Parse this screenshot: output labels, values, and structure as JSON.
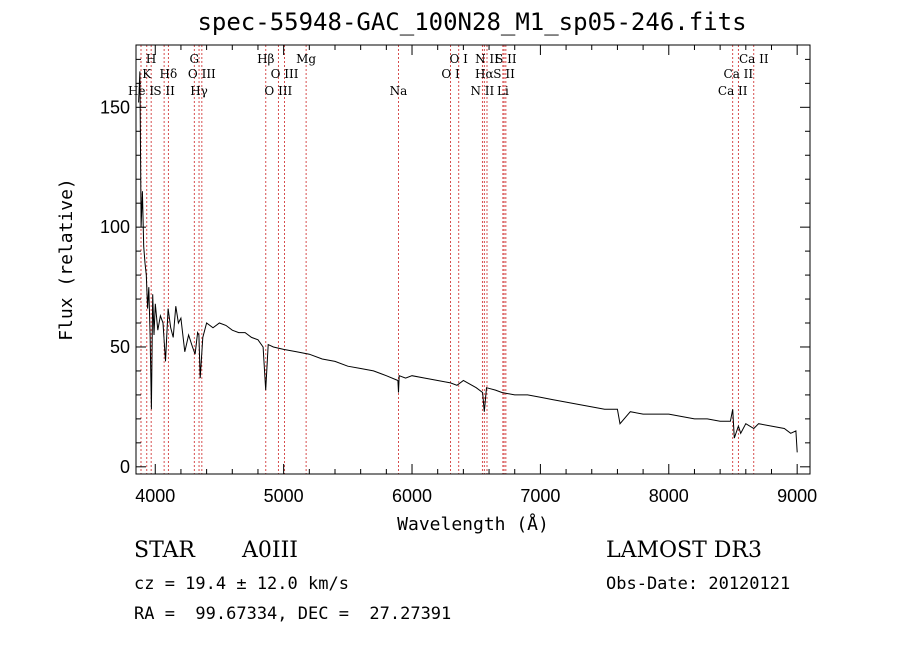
{
  "colors": {
    "line_marker": "#cc2222",
    "spectrum": "#000000",
    "axes": "#000000"
  },
  "chart_data": {
    "type": "line",
    "title": "spec-55948-GAC_100N28_M1_sp05-246.fits",
    "xlabel": "Wavelength (Å)",
    "ylabel": "Flux (relative)",
    "xlim": [
      3850,
      9100
    ],
    "ylim": [
      -3,
      176
    ],
    "xticks": [
      4000,
      5000,
      6000,
      7000,
      8000,
      9000
    ],
    "yticks": [
      0,
      50,
      100,
      150
    ],
    "spectrum": {
      "name": "flux",
      "x": [
        3870,
        3880,
        3890,
        3900,
        3910,
        3920,
        3930,
        3940,
        3950,
        3960,
        3970,
        3980,
        3990,
        4000,
        4020,
        4040,
        4060,
        4080,
        4100,
        4120,
        4140,
        4160,
        4180,
        4200,
        4230,
        4260,
        4290,
        4310,
        4330,
        4340,
        4350,
        4370,
        4400,
        4450,
        4500,
        4550,
        4600,
        4650,
        4700,
        4750,
        4800,
        4840,
        4860,
        4880,
        4920,
        5000,
        5100,
        5200,
        5300,
        5400,
        5500,
        5600,
        5700,
        5800,
        5890,
        5895,
        5900,
        5950,
        6000,
        6100,
        6200,
        6300,
        6350,
        6400,
        6500,
        6550,
        6563,
        6580,
        6650,
        6700,
        6800,
        6900,
        7000,
        7100,
        7200,
        7300,
        7400,
        7500,
        7600,
        7620,
        7700,
        7800,
        7900,
        8000,
        8100,
        8200,
        8300,
        8400,
        8480,
        8498,
        8510,
        8542,
        8560,
        8600,
        8662,
        8700,
        8800,
        8900,
        8950,
        8990,
        9000
      ],
      "y": [
        152,
        165,
        100,
        115,
        92,
        85,
        80,
        66,
        75,
        55,
        24,
        72,
        55,
        68,
        57,
        63,
        60,
        44,
        66,
        58,
        54,
        67,
        60,
        62,
        48,
        55,
        50,
        47,
        56,
        55,
        37,
        54,
        60,
        58,
        60,
        59,
        57,
        56,
        56,
        54,
        53,
        50,
        32,
        51,
        50,
        49,
        48,
        47,
        45,
        44,
        42,
        41,
        40,
        38,
        36,
        31,
        38,
        37,
        38,
        37,
        36,
        35,
        34,
        36,
        33,
        31,
        23,
        33,
        32,
        31,
        30,
        30,
        29,
        28,
        27,
        26,
        25,
        24,
        24,
        18,
        23,
        22,
        22,
        22,
        21,
        20,
        20,
        19,
        19,
        24,
        12,
        17,
        14,
        18,
        16,
        18,
        17,
        16,
        14,
        15,
        6
      ]
    },
    "line_markers": [
      {
        "label": "He I",
        "wavelength": 3889,
        "row": 3
      },
      {
        "label": "K",
        "wavelength": 3934,
        "row": 2
      },
      {
        "label": "H",
        "wavelength": 3968,
        "row": 1
      },
      {
        "label": "S II",
        "wavelength": 4069,
        "row": 3
      },
      {
        "label": "Hδ",
        "wavelength": 4102,
        "row": 2
      },
      {
        "label": "G",
        "wavelength": 4304,
        "row": 1
      },
      {
        "label": "Hγ",
        "wavelength": 4341,
        "row": 3
      },
      {
        "label": "O III",
        "wavelength": 4363,
        "row": 2
      },
      {
        "label": "Hβ",
        "wavelength": 4861,
        "row": 1
      },
      {
        "label": "O III",
        "wavelength": 4959,
        "row": 3
      },
      {
        "label": "O III",
        "wavelength": 5007,
        "row": 2
      },
      {
        "label": "Mg",
        "wavelength": 5175,
        "row": 1
      },
      {
        "label": "Na",
        "wavelength": 5894,
        "row": 3
      },
      {
        "label": "O I",
        "wavelength": 6300,
        "row": 2
      },
      {
        "label": "O I",
        "wavelength": 6364,
        "row": 1
      },
      {
        "label": "N II",
        "wavelength": 6548,
        "row": 3
      },
      {
        "label": "Hα",
        "wavelength": 6563,
        "row": 2
      },
      {
        "label": "N II",
        "wavelength": 6584,
        "row": 1
      },
      {
        "label": "S II",
        "wavelength": 6717,
        "row": 2
      },
      {
        "label": "S II",
        "wavelength": 6731,
        "row": 1
      },
      {
        "label": "Li",
        "wavelength": 6708,
        "row": 3
      },
      {
        "label": "Ca II",
        "wavelength": 8498,
        "row": 3
      },
      {
        "label": "Ca II",
        "wavelength": 8542,
        "row": 2
      },
      {
        "label": "Ca II",
        "wavelength": 8662,
        "row": 1
      }
    ]
  },
  "info": {
    "object_class": "STAR",
    "subclass": "A0III",
    "survey": "LAMOST DR3",
    "redshift": "cz = 19.4 ± 12.0 km/s",
    "obs_date": "Obs-Date: 20120121",
    "coords": "RA =  99.67334, DEC =  27.27391"
  }
}
